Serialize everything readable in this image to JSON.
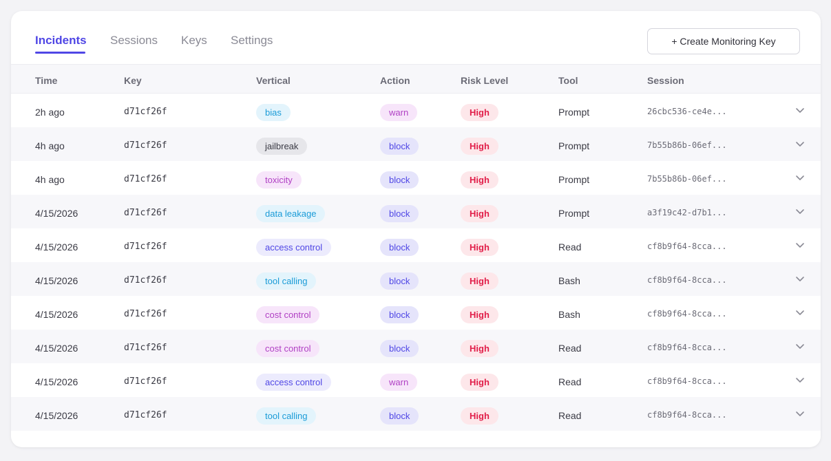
{
  "tabs": [
    {
      "label": "Incidents",
      "active": true
    },
    {
      "label": "Sessions",
      "active": false
    },
    {
      "label": "Keys",
      "active": false
    },
    {
      "label": "Settings",
      "active": false
    }
  ],
  "create_button": {
    "label": "+ Create Monitoring Key"
  },
  "columns": [
    "Time",
    "Key",
    "Vertical",
    "Action",
    "Risk Level",
    "Tool",
    "Session"
  ],
  "pill_styles": {
    "bias": {
      "bg": "#e3f4fc",
      "fg": "#1a9bd7"
    },
    "jailbreak": {
      "bg": "#e6e6ea",
      "fg": "#3a3a44"
    },
    "toxicity": {
      "bg": "#f7e5fa",
      "fg": "#b040c4"
    },
    "data leakage": {
      "bg": "#e3f4fc",
      "fg": "#1a9bd7"
    },
    "access control": {
      "bg": "#ecebfd",
      "fg": "#4f46e5"
    },
    "tool calling": {
      "bg": "#e3f4fc",
      "fg": "#1a9bd7"
    },
    "cost control": {
      "bg": "#f7e5fa",
      "fg": "#b040c4"
    },
    "warn": {
      "bg": "#f7e5fa",
      "fg": "#b040c4"
    },
    "block": {
      "bg": "#e5e4fb",
      "fg": "#4f46e5"
    },
    "High": {
      "bg": "#fde7ea",
      "fg": "#e11d48"
    }
  },
  "rows": [
    {
      "time": "2h ago",
      "key": "d71cf26f",
      "vertical": "bias",
      "action": "warn",
      "risk": "High",
      "tool": "Prompt",
      "session": "26cbc536-ce4e..."
    },
    {
      "time": "4h ago",
      "key": "d71cf26f",
      "vertical": "jailbreak",
      "action": "block",
      "risk": "High",
      "tool": "Prompt",
      "session": "7b55b86b-06ef..."
    },
    {
      "time": "4h ago",
      "key": "d71cf26f",
      "vertical": "toxicity",
      "action": "block",
      "risk": "High",
      "tool": "Prompt",
      "session": "7b55b86b-06ef..."
    },
    {
      "time": "4/15/2026",
      "key": "d71cf26f",
      "vertical": "data leakage",
      "action": "block",
      "risk": "High",
      "tool": "Prompt",
      "session": "a3f19c42-d7b1..."
    },
    {
      "time": "4/15/2026",
      "key": "d71cf26f",
      "vertical": "access control",
      "action": "block",
      "risk": "High",
      "tool": "Read",
      "session": "cf8b9f64-8cca..."
    },
    {
      "time": "4/15/2026",
      "key": "d71cf26f",
      "vertical": "tool calling",
      "action": "block",
      "risk": "High",
      "tool": "Bash",
      "session": "cf8b9f64-8cca..."
    },
    {
      "time": "4/15/2026",
      "key": "d71cf26f",
      "vertical": "cost control",
      "action": "block",
      "risk": "High",
      "tool": "Bash",
      "session": "cf8b9f64-8cca..."
    },
    {
      "time": "4/15/2026",
      "key": "d71cf26f",
      "vertical": "cost control",
      "action": "block",
      "risk": "High",
      "tool": "Read",
      "session": "cf8b9f64-8cca..."
    },
    {
      "time": "4/15/2026",
      "key": "d71cf26f",
      "vertical": "access control",
      "action": "warn",
      "risk": "High",
      "tool": "Read",
      "session": "cf8b9f64-8cca..."
    },
    {
      "time": "4/15/2026",
      "key": "d71cf26f",
      "vertical": "tool calling",
      "action": "block",
      "risk": "High",
      "tool": "Read",
      "session": "cf8b9f64-8cca..."
    }
  ],
  "row_expand_icon": "chevron-down-icon",
  "colors": {
    "accent": "#4f46e5",
    "row_alt": "#f7f7fa"
  }
}
